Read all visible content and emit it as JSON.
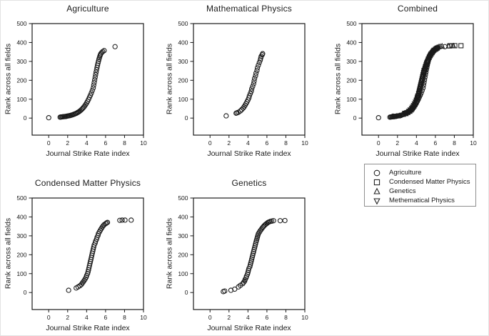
{
  "colors": {
    "foreground": "#1a1a1a",
    "background": "#ffffff"
  },
  "chart_data": {
    "type": "scatter",
    "xlabel": "Journal Strike Rate index",
    "ylabel": "Rank across all fields",
    "xlim": [
      -1.75,
      10
    ],
    "ylim": [
      -90,
      500
    ],
    "xticks": [
      0,
      2,
      4,
      6,
      8,
      10
    ],
    "yticks": [
      0,
      100,
      200,
      300,
      400,
      500
    ],
    "grid": false,
    "fields": {
      "agriculture": {
        "marker": "circle",
        "points": [
          [
            0,
            2
          ],
          [
            1.2,
            5
          ],
          [
            1.3,
            6
          ],
          [
            1.35,
            6
          ],
          [
            1.45,
            7
          ],
          [
            1.5,
            7
          ],
          [
            1.6,
            8
          ],
          [
            1.7,
            8
          ],
          [
            1.75,
            9
          ],
          [
            1.85,
            9
          ],
          [
            1.9,
            10
          ],
          [
            2,
            11
          ],
          [
            2.1,
            12
          ],
          [
            2.2,
            13
          ],
          [
            2.3,
            14
          ],
          [
            2.4,
            16
          ],
          [
            2.5,
            17
          ],
          [
            2.6,
            19
          ],
          [
            2.7,
            21
          ],
          [
            2.8,
            23
          ],
          [
            2.9,
            25
          ],
          [
            3,
            28
          ],
          [
            3.1,
            31
          ],
          [
            3.2,
            34
          ],
          [
            3.3,
            38
          ],
          [
            3.4,
            42
          ],
          [
            3.5,
            47
          ],
          [
            3.6,
            52
          ],
          [
            3.7,
            58
          ],
          [
            3.8,
            65
          ],
          [
            3.9,
            72
          ],
          [
            4,
            80
          ],
          [
            4.1,
            89
          ],
          [
            4.2,
            99
          ],
          [
            4.3,
            110
          ],
          [
            4.4,
            121
          ],
          [
            4.5,
            133
          ],
          [
            4.6,
            146
          ],
          [
            4.7,
            160
          ],
          [
            4.75,
            174
          ],
          [
            4.8,
            188
          ],
          [
            4.85,
            202
          ],
          [
            4.9,
            216
          ],
          [
            4.95,
            230
          ],
          [
            5,
            243
          ],
          [
            5.05,
            256
          ],
          [
            5.1,
            268
          ],
          [
            5.15,
            280
          ],
          [
            5.2,
            291
          ],
          [
            5.25,
            301
          ],
          [
            5.3,
            311
          ],
          [
            5.35,
            320
          ],
          [
            5.4,
            328
          ],
          [
            5.45,
            335
          ],
          [
            5.5,
            341
          ],
          [
            5.6,
            347
          ],
          [
            5.7,
            352
          ],
          [
            5.85,
            357
          ],
          [
            7,
            378
          ]
        ]
      },
      "condensed_matter_physics": {
        "marker": "square",
        "points": [
          [
            2.1,
            12
          ],
          [
            2.9,
            24
          ],
          [
            3.1,
            30
          ],
          [
            3.3,
            36
          ],
          [
            3.45,
            43
          ],
          [
            3.55,
            50
          ],
          [
            3.65,
            57
          ],
          [
            3.75,
            64
          ],
          [
            3.85,
            72
          ],
          [
            3.95,
            81
          ],
          [
            4,
            90
          ],
          [
            4.1,
            100
          ],
          [
            4.15,
            110
          ],
          [
            4.2,
            120
          ],
          [
            4.25,
            131
          ],
          [
            4.3,
            142
          ],
          [
            4.35,
            153
          ],
          [
            4.4,
            164
          ],
          [
            4.45,
            175
          ],
          [
            4.5,
            186
          ],
          [
            4.55,
            197
          ],
          [
            4.6,
            208
          ],
          [
            4.65,
            219
          ],
          [
            4.7,
            230
          ],
          [
            4.75,
            241
          ],
          [
            4.8,
            252
          ],
          [
            4.9,
            262
          ],
          [
            4.95,
            272
          ],
          [
            5.05,
            282
          ],
          [
            5.1,
            292
          ],
          [
            5.2,
            302
          ],
          [
            5.25,
            312
          ],
          [
            5.35,
            321
          ],
          [
            5.45,
            330
          ],
          [
            5.55,
            338
          ],
          [
            5.65,
            346
          ],
          [
            5.75,
            353
          ],
          [
            5.85,
            359
          ],
          [
            6,
            364
          ],
          [
            6.1,
            368
          ],
          [
            6.2,
            371
          ],
          [
            7.5,
            382
          ],
          [
            7.75,
            383
          ],
          [
            8.05,
            383
          ],
          [
            8.7,
            383
          ]
        ]
      },
      "genetics": {
        "marker": "triangle-up",
        "points": [
          [
            1.4,
            5
          ],
          [
            1.55,
            8
          ],
          [
            2.2,
            12
          ],
          [
            2.6,
            18
          ],
          [
            3,
            30
          ],
          [
            3.2,
            38
          ],
          [
            3.45,
            47
          ],
          [
            3.55,
            54
          ],
          [
            3.65,
            61
          ],
          [
            3.7,
            69
          ],
          [
            3.8,
            78
          ],
          [
            3.85,
            87
          ],
          [
            3.95,
            97
          ],
          [
            4,
            107
          ],
          [
            4.05,
            117
          ],
          [
            4.1,
            127
          ],
          [
            4.2,
            137
          ],
          [
            4.25,
            147
          ],
          [
            4.3,
            157
          ],
          [
            4.35,
            167
          ],
          [
            4.4,
            177
          ],
          [
            4.45,
            187
          ],
          [
            4.5,
            197
          ],
          [
            4.55,
            207
          ],
          [
            4.6,
            217
          ],
          [
            4.65,
            227
          ],
          [
            4.7,
            237
          ],
          [
            4.75,
            247
          ],
          [
            4.8,
            257
          ],
          [
            4.85,
            267
          ],
          [
            4.9,
            276
          ],
          [
            4.95,
            285
          ],
          [
            5,
            294
          ],
          [
            5.05,
            303
          ],
          [
            5.1,
            311
          ],
          [
            5.2,
            319
          ],
          [
            5.3,
            327
          ],
          [
            5.4,
            334
          ],
          [
            5.5,
            341
          ],
          [
            5.6,
            347
          ],
          [
            5.7,
            353
          ],
          [
            5.8,
            358
          ],
          [
            5.9,
            362
          ],
          [
            6,
            366
          ],
          [
            6.1,
            370
          ],
          [
            6.2,
            373
          ],
          [
            6.35,
            376
          ],
          [
            6.5,
            378
          ],
          [
            6.7,
            380
          ],
          [
            7.4,
            380
          ],
          [
            7.9,
            381
          ]
        ]
      },
      "mathematical_physics": {
        "marker": "triangle-down",
        "points": [
          [
            1.7,
            12
          ],
          [
            2.75,
            26
          ],
          [
            2.85,
            28
          ],
          [
            3,
            31
          ],
          [
            3.2,
            38
          ],
          [
            3.35,
            45
          ],
          [
            3.5,
            53
          ],
          [
            3.6,
            60
          ],
          [
            3.7,
            68
          ],
          [
            3.8,
            77
          ],
          [
            3.9,
            86
          ],
          [
            4,
            96
          ],
          [
            4.1,
            107
          ],
          [
            4.15,
            118
          ],
          [
            4.25,
            130
          ],
          [
            4.35,
            142
          ],
          [
            4.4,
            155
          ],
          [
            4.5,
            168
          ],
          [
            4.6,
            182
          ],
          [
            4.65,
            196
          ],
          [
            4.7,
            210
          ],
          [
            4.8,
            224
          ],
          [
            4.85,
            238
          ],
          [
            4.95,
            252
          ],
          [
            5,
            266
          ],
          [
            5.1,
            280
          ],
          [
            5.2,
            294
          ],
          [
            5.3,
            307
          ],
          [
            5.35,
            318
          ],
          [
            5.4,
            327
          ],
          [
            5.5,
            335
          ],
          [
            5.55,
            341
          ]
        ]
      }
    },
    "subplots": [
      {
        "id": "agriculture",
        "title": "Agriculture",
        "series": [
          "agriculture"
        ],
        "field_markers": false
      },
      {
        "id": "mathematical-physics",
        "title": "Mathematical Physics",
        "series": [
          "mathematical_physics"
        ],
        "field_markers": false
      },
      {
        "id": "combined",
        "title": "Combined",
        "series": [
          "agriculture",
          "condensed_matter_physics",
          "genetics",
          "mathematical_physics"
        ],
        "field_markers": true
      },
      {
        "id": "condensed-matter-physics",
        "title": "Condensed Matter Physics",
        "series": [
          "condensed_matter_physics"
        ],
        "field_markers": false
      },
      {
        "id": "genetics",
        "title": "Genetics",
        "series": [
          "genetics"
        ],
        "field_markers": false
      }
    ],
    "legend": {
      "position": "bottom-right",
      "items": [
        {
          "marker": "circle",
          "label": "Agriculture"
        },
        {
          "marker": "square",
          "label": "Condensed Matter Physics"
        },
        {
          "marker": "triangle-up",
          "label": "Genetics"
        },
        {
          "marker": "triangle-down",
          "label": "Methematical Physics"
        }
      ]
    }
  }
}
